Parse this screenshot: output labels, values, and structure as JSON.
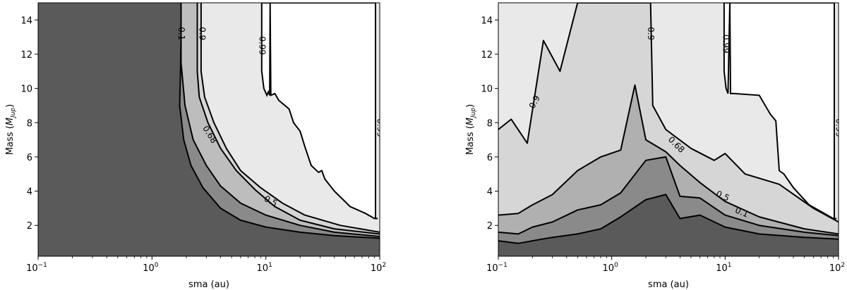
{
  "chart_data": [
    {
      "type": "contour",
      "panel": "left",
      "xlabel": "sma (au)",
      "ylabel": "Mass (M_Jup)",
      "ylabel_main": "Mass (",
      "ylabel_sym": "M",
      "ylabel_sub": "Jup",
      "ylabel_close": ")",
      "xscale": "log",
      "xlim": [
        0.1,
        100
      ],
      "ylim": [
        0.2,
        15
      ],
      "x_ticks": [
        {
          "value": 0.1,
          "base": "10",
          "exp": "−1"
        },
        {
          "value": 1,
          "base": "10",
          "exp": "0"
        },
        {
          "value": 10,
          "base": "10",
          "exp": "1"
        },
        {
          "value": 100,
          "base": "10",
          "exp": "2"
        }
      ],
      "y_ticks": [
        2,
        4,
        6,
        8,
        10,
        12,
        14
      ],
      "levels": [
        {
          "level": "0.1",
          "fill": "#5a5a5a",
          "boundary": [
            [
              1.8,
              15
            ],
            [
              1.8,
              13
            ],
            [
              1.78,
              11
            ],
            [
              1.75,
              9
            ],
            [
              1.9,
              7
            ],
            [
              2.2,
              5.5
            ],
            [
              2.8,
              4.2
            ],
            [
              4,
              3
            ],
            [
              6,
              2.3
            ],
            [
              10,
              1.9
            ],
            [
              20,
              1.6
            ],
            [
              40,
              1.4
            ],
            [
              100,
              1.25
            ]
          ]
        },
        {
          "level": "0.5",
          "fill": "#8a8a8a",
          "boundary": [
            [
              1.8,
              15
            ],
            [
              1.8,
              11.5
            ],
            [
              1.95,
              9
            ],
            [
              2.3,
              7
            ],
            [
              3,
              5.5
            ],
            [
              4,
              4.3
            ],
            [
              6,
              3.3
            ],
            [
              10,
              2.6
            ],
            [
              20,
              2.0
            ],
            [
              40,
              1.6
            ],
            [
              100,
              1.35
            ]
          ]
        },
        {
          "level": "0.68",
          "fill": "#bdbdbd",
          "boundary": [
            [
              2.5,
              15
            ],
            [
              2.5,
              11
            ],
            [
              2.6,
              9.5
            ],
            [
              3.1,
              8
            ],
            [
              4,
              6.5
            ],
            [
              5.5,
              5.2
            ],
            [
              8,
              4.1
            ],
            [
              12,
              3.1
            ],
            [
              20,
              2.3
            ],
            [
              40,
              1.8
            ],
            [
              100,
              1.5
            ]
          ]
        },
        {
          "level": "0.9",
          "fill": "#d6d6d6",
          "boundary": [
            [
              2.7,
              15
            ],
            [
              2.7,
              11
            ],
            [
              2.9,
              9.5
            ],
            [
              3.5,
              8
            ],
            [
              4.5,
              6.5
            ],
            [
              6,
              5.2
            ],
            [
              9,
              4.2
            ],
            [
              14,
              3.3
            ],
            [
              22,
              2.6
            ],
            [
              45,
              2.0
            ],
            [
              100,
              1.6
            ]
          ]
        },
        {
          "level": "0.99",
          "fill": "#e9e9e9",
          "boundary": [
            [
              9.2,
              15
            ],
            [
              9.2,
              11
            ],
            [
              9.6,
              10
            ],
            [
              10.2,
              9.6
            ],
            [
              10.5,
              9.8
            ],
            [
              10.8,
              9.6
            ],
            [
              10.9,
              15
            ]
          ]
        }
      ],
      "labels": [
        {
          "text": "0.1",
          "x": 1.8,
          "y": 13.2,
          "rotate": 90
        },
        {
          "text": "0.9",
          "x": 2.75,
          "y": 13.2,
          "rotate": 90
        },
        {
          "text": "0.99",
          "x": 9.2,
          "y": 12.5,
          "rotate": 90
        },
        {
          "text": "0.68",
          "x": 3.2,
          "y": 7.3,
          "rotate": 58
        },
        {
          "text": "0.5",
          "x": 11,
          "y": 3.4,
          "rotate": 28
        },
        {
          "text": "0.99",
          "x": 100,
          "y": 7.7,
          "rotate": 90
        }
      ]
    },
    {
      "type": "contour",
      "panel": "right",
      "xlabel": "sma (au)",
      "ylabel": "Mass (M_Jup)",
      "ylabel_main": "Mass (",
      "ylabel_sym": "M",
      "ylabel_sub": "Jup",
      "ylabel_close": ")",
      "xscale": "log",
      "xlim": [
        0.1,
        100
      ],
      "ylim": [
        0.2,
        15
      ],
      "x_ticks": [
        {
          "value": 0.1,
          "base": "10",
          "exp": "−1"
        },
        {
          "value": 1,
          "base": "10",
          "exp": "0"
        },
        {
          "value": 10,
          "base": "10",
          "exp": "1"
        },
        {
          "value": 100,
          "base": "10",
          "exp": "2"
        }
      ],
      "y_ticks": [
        2,
        4,
        6,
        8,
        10,
        12,
        14
      ],
      "levels": [
        {
          "level": "0.1",
          "fill": "#5a5a5a",
          "boundary": [
            [
              0.1,
              1.1
            ],
            [
              0.15,
              0.95
            ],
            [
              0.2,
              1.1
            ],
            [
              0.3,
              1.3
            ],
            [
              0.5,
              1.5
            ],
            [
              0.8,
              1.8
            ],
            [
              1.2,
              2.5
            ],
            [
              2,
              3.5
            ],
            [
              3,
              3.8
            ],
            [
              4,
              2.4
            ],
            [
              6,
              2.6
            ],
            [
              10,
              1.9
            ],
            [
              20,
              1.5
            ],
            [
              50,
              1.3
            ],
            [
              100,
              1.2
            ]
          ]
        },
        {
          "level": "0.5",
          "fill": "#8a8a8a",
          "boundary": [
            [
              0.1,
              1.6
            ],
            [
              0.15,
              1.5
            ],
            [
              0.2,
              1.9
            ],
            [
              0.3,
              2.2
            ],
            [
              0.5,
              2.9
            ],
            [
              0.8,
              3.2
            ],
            [
              1.2,
              3.9
            ],
            [
              2,
              5.8
            ],
            [
              3,
              6.0
            ],
            [
              4,
              3.7
            ],
            [
              6,
              3.6
            ],
            [
              10,
              2.6
            ],
            [
              20,
              2.0
            ],
            [
              50,
              1.6
            ],
            [
              100,
              1.4
            ]
          ]
        },
        {
          "level": "0.68",
          "fill": "#b0b0b0",
          "boundary": [
            [
              0.1,
              2.6
            ],
            [
              0.15,
              2.7
            ],
            [
              0.2,
              3.2
            ],
            [
              0.3,
              3.8
            ],
            [
              0.5,
              5.2
            ],
            [
              0.8,
              6.0
            ],
            [
              1.2,
              6.4
            ],
            [
              1.6,
              10.2
            ],
            [
              2,
              7.0
            ],
            [
              3,
              6.3
            ],
            [
              4,
              5.5
            ],
            [
              6,
              4.5
            ],
            [
              10,
              3.4
            ],
            [
              20,
              2.5
            ],
            [
              50,
              1.8
            ],
            [
              100,
              1.5
            ]
          ]
        },
        {
          "level": "0.9",
          "fill": "#d6d6d6",
          "boundary": [
            [
              0.1,
              7.6
            ],
            [
              0.13,
              8.2
            ],
            [
              0.18,
              6.8
            ],
            [
              0.25,
              12.8
            ],
            [
              0.35,
              11.0
            ],
            [
              0.5,
              15
            ],
            [
              2.2,
              15
            ],
            [
              2.3,
              9.0
            ],
            [
              3,
              7.6
            ],
            [
              5,
              6.5
            ],
            [
              8,
              5.8
            ],
            [
              10,
              6.2
            ],
            [
              15,
              5.0
            ],
            [
              30,
              4.4
            ],
            [
              60,
              3.0
            ],
            [
              100,
              2.2
            ]
          ]
        },
        {
          "level": "0.99",
          "fill": "#e9e9e9",
          "boundary": [
            [
              9.8,
              15
            ],
            [
              9.8,
              11
            ],
            [
              10.2,
              10.0
            ],
            [
              10.6,
              9.7
            ],
            [
              11,
              15
            ]
          ]
        }
      ],
      "labels": [
        {
          "text": "0.9",
          "x": 2.2,
          "y": 13.2,
          "rotate": 90
        },
        {
          "text": "0.99",
          "x": 10.1,
          "y": 12.6,
          "rotate": 90
        },
        {
          "text": "0.9",
          "x": 0.21,
          "y": 9.2,
          "rotate": -62
        },
        {
          "text": "0.68",
          "x": 3.7,
          "y": 6.7,
          "rotate": 45
        },
        {
          "text": "0.5",
          "x": 9.5,
          "y": 3.7,
          "rotate": 24
        },
        {
          "text": "0.1",
          "x": 14,
          "y": 2.75,
          "rotate": 22
        },
        {
          "text": "0.99",
          "x": 100,
          "y": 7.7,
          "rotate": 90
        }
      ]
    }
  ]
}
